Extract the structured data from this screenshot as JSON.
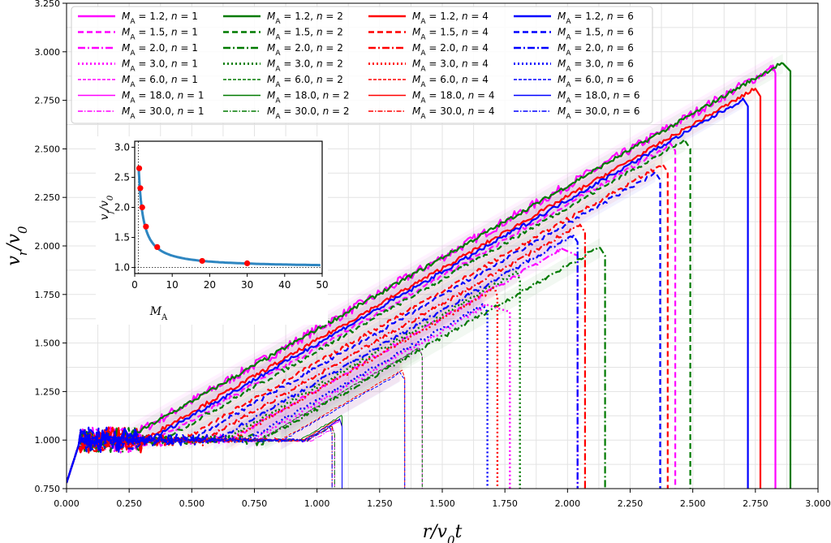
{
  "chart_data": [
    {
      "type": "line",
      "title": "",
      "xlabel": "r/v₀t",
      "ylabel": "v_r/v₀",
      "xlim": [
        0.0,
        3.0
      ],
      "ylim": [
        0.75,
        3.25
      ],
      "xticks": [
        "0.000",
        "0.250",
        "0.500",
        "0.750",
        "1.000",
        "1.250",
        "1.500",
        "1.750",
        "2.000",
        "2.250",
        "2.500",
        "2.750",
        "3.000"
      ],
      "yticks": [
        "0.750",
        "1.000",
        "1.250",
        "1.500",
        "1.750",
        "2.000",
        "2.250",
        "2.500",
        "2.750",
        "3.000",
        "3.250"
      ],
      "grid": true,
      "legend_position": "top",
      "legend_columns": 4,
      "colors": {
        "n1": "#ff00ff",
        "n2": "#007a00",
        "n4": "#ff0000",
        "n6": "#0000ff"
      },
      "line_styles": {
        "1.2": "solid-thick",
        "1.5": "dashed-thick",
        "2.0": "dashdot-thick",
        "3.0": "dotted-thick",
        "6.0": "dashed-thin",
        "18.0": "solid-thin",
        "30.0": "dashdot-thin"
      },
      "series": [
        {
          "label_ma": "1.2",
          "label_n": "1",
          "color": "#ff00ff",
          "peak_x": 2.82,
          "peak_y": 2.93,
          "front_x": 2.83
        },
        {
          "label_ma": "1.5",
          "label_n": "1",
          "color": "#ff00ff",
          "peak_x": 2.41,
          "peak_y": 2.53,
          "front_x": 2.43
        },
        {
          "label_ma": "2.0",
          "label_n": "1",
          "color": "#ff00ff",
          "peak_x": 1.97,
          "peak_y": 1.99,
          "front_x": 2.04
        },
        {
          "label_ma": "3.0",
          "label_n": "1",
          "color": "#ff00ff",
          "peak_x": 1.67,
          "peak_y": 1.7,
          "front_x": 1.77
        },
        {
          "label_ma": "6.0",
          "label_n": "1",
          "color": "#ff00ff",
          "peak_x": 1.4,
          "peak_y": 1.48,
          "front_x": 1.42
        },
        {
          "label_ma": "18.0",
          "label_n": "1",
          "color": "#ff00ff",
          "peak_x": 1.09,
          "peak_y": 1.11,
          "front_x": 1.1
        },
        {
          "label_ma": "30.0",
          "label_n": "1",
          "color": "#ff00ff",
          "peak_x": 1.06,
          "peak_y": 1.07,
          "front_x": 1.07
        },
        {
          "label_ma": "1.2",
          "label_n": "2",
          "color": "#007a00",
          "peak_x": 2.86,
          "peak_y": 2.94,
          "front_x": 2.89
        },
        {
          "label_ma": "1.5",
          "label_n": "2",
          "color": "#007a00",
          "peak_x": 2.47,
          "peak_y": 2.54,
          "front_x": 2.49
        },
        {
          "label_ma": "2.0",
          "label_n": "2",
          "color": "#007a00",
          "peak_x": 2.13,
          "peak_y": 1.99,
          "front_x": 2.15
        },
        {
          "label_ma": "3.0",
          "label_n": "2",
          "color": "#007a00",
          "peak_x": 1.8,
          "peak_y": 1.86,
          "front_x": 1.81
        },
        {
          "label_ma": "6.0",
          "label_n": "2",
          "color": "#007a00",
          "peak_x": 1.41,
          "peak_y": 1.47,
          "front_x": 1.42
        },
        {
          "label_ma": "18.0",
          "label_n": "2",
          "color": "#007a00",
          "peak_x": 1.1,
          "peak_y": 1.12,
          "front_x": 1.1
        },
        {
          "label_ma": "30.0",
          "label_n": "2",
          "color": "#007a00",
          "peak_x": 1.06,
          "peak_y": 1.07,
          "front_x": 1.07
        },
        {
          "label_ma": "1.2",
          "label_n": "4",
          "color": "#ff0000",
          "peak_x": 2.75,
          "peak_y": 2.81,
          "front_x": 2.77
        },
        {
          "label_ma": "1.5",
          "label_n": "4",
          "color": "#ff0000",
          "peak_x": 2.38,
          "peak_y": 2.42,
          "front_x": 2.4
        },
        {
          "label_ma": "2.0",
          "label_n": "4",
          "color": "#ff0000",
          "peak_x": 2.05,
          "peak_y": 2.11,
          "front_x": 2.07
        },
        {
          "label_ma": "3.0",
          "label_n": "4",
          "color": "#ff0000",
          "peak_x": 1.71,
          "peak_y": 1.78,
          "front_x": 1.72
        },
        {
          "label_ma": "6.0",
          "label_n": "4",
          "color": "#ff0000",
          "peak_x": 1.34,
          "peak_y": 1.36,
          "front_x": 1.35
        },
        {
          "label_ma": "18.0",
          "label_n": "4",
          "color": "#ff0000",
          "peak_x": 1.09,
          "peak_y": 1.11,
          "front_x": 1.1
        },
        {
          "label_ma": "30.0",
          "label_n": "4",
          "color": "#ff0000",
          "peak_x": 1.06,
          "peak_y": 1.07,
          "front_x": 1.06
        },
        {
          "label_ma": "1.2",
          "label_n": "6",
          "color": "#0000ff",
          "peak_x": 2.7,
          "peak_y": 2.76,
          "front_x": 2.72
        },
        {
          "label_ma": "1.5",
          "label_n": "6",
          "color": "#0000ff",
          "peak_x": 2.35,
          "peak_y": 2.38,
          "front_x": 2.37
        },
        {
          "label_ma": "2.0",
          "label_n": "6",
          "color": "#0000ff",
          "peak_x": 2.02,
          "peak_y": 2.06,
          "front_x": 2.04
        },
        {
          "label_ma": "3.0",
          "label_n": "6",
          "color": "#0000ff",
          "peak_x": 1.66,
          "peak_y": 1.7,
          "front_x": 1.68
        },
        {
          "label_ma": "6.0",
          "label_n": "6",
          "color": "#0000ff",
          "peak_x": 1.33,
          "peak_y": 1.35,
          "front_x": 1.35
        },
        {
          "label_ma": "18.0",
          "label_n": "6",
          "color": "#0000ff",
          "peak_x": 1.09,
          "peak_y": 1.11,
          "front_x": 1.1
        },
        {
          "label_ma": "30.0",
          "label_n": "6",
          "color": "#0000ff",
          "peak_x": 1.05,
          "peak_y": 1.07,
          "front_x": 1.06
        }
      ]
    },
    {
      "type": "line",
      "title": "",
      "xlabel": "M_A",
      "ylabel": "v_f/v₀",
      "xlim": [
        0,
        50
      ],
      "ylim": [
        0.9,
        3.1
      ],
      "xticks": [
        "0",
        "10",
        "20",
        "30",
        "40",
        "50"
      ],
      "yticks": [
        "1.0",
        "1.5",
        "2.0",
        "2.5",
        "3.0"
      ],
      "curve_color": "#2e86c1",
      "marker_color": "#ff0000",
      "points": [
        {
          "x": 1.2,
          "y": 2.65
        },
        {
          "x": 1.5,
          "y": 2.32
        },
        {
          "x": 2.0,
          "y": 2.0
        },
        {
          "x": 3.0,
          "y": 1.68
        },
        {
          "x": 6.0,
          "y": 1.34
        },
        {
          "x": 18.0,
          "y": 1.11
        },
        {
          "x": 30.0,
          "y": 1.07
        }
      ],
      "reference_lines": {
        "vertical_x": 1.0,
        "horizontal_y": 1.0
      }
    }
  ]
}
